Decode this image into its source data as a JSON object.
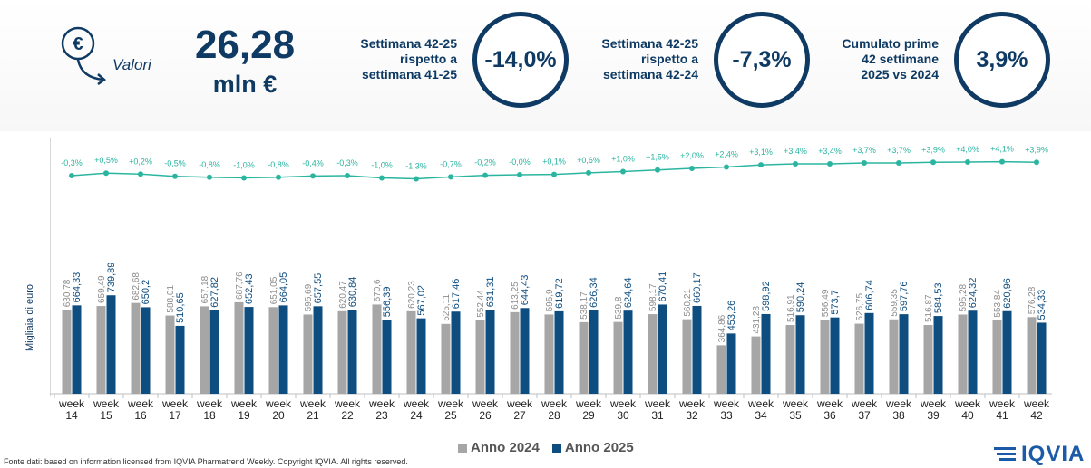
{
  "header": {
    "icon": "euro-down-arrow-icon",
    "valori_label": "Valori",
    "total_value": "26,28",
    "total_unit": "mln €"
  },
  "kpis": [
    {
      "lines": [
        "Settimana 42-25",
        "rispetto a",
        "settimana 41-25"
      ],
      "value": "-14,0%"
    },
    {
      "lines": [
        "Settimana 42-25",
        "rispetto a",
        "settimana 42-24"
      ],
      "value": "-7,3%"
    },
    {
      "lines": [
        "Cumulato prime",
        "42 settimane",
        "2025 vs 2024"
      ],
      "value": "3,9%"
    }
  ],
  "colors": {
    "series_2024": "#a6a6a6",
    "series_2025": "#0e4d80",
    "trend": "#2bb5a0",
    "text_dark": "#0e3a63"
  },
  "chart_data": {
    "type": "bar",
    "ylabel": "Migliaia di euro",
    "categories": [
      "week 14",
      "week 15",
      "week 16",
      "week 17",
      "week 18",
      "week 19",
      "week 20",
      "week 21",
      "week 22",
      "week 23",
      "week 24",
      "week 25",
      "week 26",
      "week 27",
      "week 28",
      "week 29",
      "week 30",
      "week 31",
      "week 32",
      "week 33",
      "week 34",
      "week 35",
      "week 36",
      "week 37",
      "week 38",
      "week 39",
      "week 40",
      "week 41",
      "week 42"
    ],
    "series": [
      {
        "name": "Anno 2024",
        "values": [
          630.78,
          659.49,
          682.68,
          588.01,
          657.18,
          687.76,
          651.05,
          595.69,
          620.47,
          670.6,
          620.23,
          525.11,
          552.44,
          613.25,
          595.9,
          538.17,
          539.8,
          598.17,
          560.21,
          364.86,
          431.28,
          516.91,
          556.49,
          526.75,
          559.35,
          516.87,
          595.28,
          553.84,
          576.28
        ],
        "labels": [
          "630,78",
          "659,49",
          "682,68",
          "588,01",
          "657,18",
          "687,76",
          "651,05",
          "595,69",
          "620,47",
          "670,6",
          "620,23",
          "525,11",
          "552,44",
          "613,25",
          "595,9",
          "538,17",
          "539,8",
          "598,17",
          "560,21",
          "364,86",
          "431,28",
          "516,91",
          "556,49",
          "526,75",
          "559,35",
          "516,87",
          "595,28",
          "553,84",
          "576,28"
        ]
      },
      {
        "name": "Anno 2025",
        "values": [
          664.33,
          739.89,
          650.2,
          510.65,
          627.82,
          652.43,
          664.05,
          657.55,
          630.84,
          556.39,
          567.02,
          617.46,
          631.31,
          644.43,
          619.72,
          626.34,
          624.64,
          670.41,
          660.17,
          453.26,
          598.92,
          590.24,
          573.7,
          606.74,
          597.76,
          584.53,
          624.32,
          620.96,
          534.33
        ],
        "labels": [
          "664,33",
          "739,89",
          "650,2",
          "510,65",
          "627,82",
          "652,43",
          "664,05",
          "657,55",
          "630,84",
          "556,39",
          "567,02",
          "617,46",
          "631,31",
          "644,43",
          "619,72",
          "626,34",
          "624,64",
          "670,41",
          "660,17",
          "453,26",
          "598,92",
          "590,24",
          "573,7",
          "606,74",
          "597,76",
          "584,53",
          "624,32",
          "620,96",
          "534,33"
        ]
      }
    ],
    "trend": {
      "values": [
        -0.3,
        0.5,
        0.2,
        -0.5,
        -0.8,
        -1.0,
        -0.8,
        -0.4,
        -0.3,
        -1.0,
        -1.3,
        -0.7,
        -0.2,
        0.0,
        0.1,
        0.6,
        1.0,
        1.5,
        2.0,
        2.4,
        3.1,
        3.4,
        3.4,
        3.7,
        3.7,
        3.9,
        4.0,
        4.1,
        3.9
      ],
      "labels": [
        "-0,3%",
        "+0,5%",
        "+0,2%",
        "-0,5%",
        "-0,8%",
        "-1,0%",
        "-0,8%",
        "-0,4%",
        "-0,3%",
        "-1,0%",
        "-1,3%",
        "-0,7%",
        "-0,2%",
        "-0,0%",
        "+0,1%",
        "+0,6%",
        "+1,0%",
        "+1,5%",
        "+2,0%",
        "+2,4%",
        "+3,1%",
        "+3,4%",
        "+3,4%",
        "+3,7%",
        "+3,7%",
        "+3,9%",
        "+4,0%",
        "+4,1%",
        "+3,9%"
      ]
    },
    "legend": {
      "placement": "bottom",
      "entries": [
        "Anno 2024",
        "Anno 2025"
      ]
    }
  },
  "footer": {
    "source": "Fonte dati: based on information licensed from IQVIA Pharmatrend Weekly. Copyright IQVIA. All rights reserved.",
    "logo_text": "IQVIA"
  }
}
